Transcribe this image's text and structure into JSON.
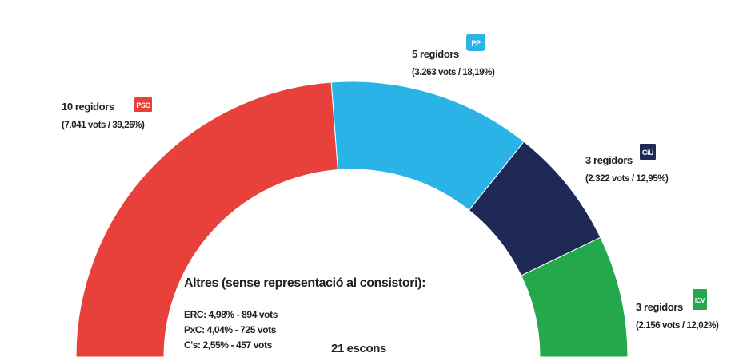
{
  "chart_data": {
    "type": "donut",
    "categories": [
      "PSC",
      "PP",
      "CiU",
      "ICV"
    ],
    "values": [
      10,
      5,
      3,
      3
    ],
    "value_labels": [
      "10 regidors",
      "5 regidors",
      "3 regidors",
      "3 regidors"
    ],
    "vote_labels": [
      "(7.041 vots / 39,26%)",
      "(3.263 vots / 18,19%)",
      "(2.322 vots / 12,95%)",
      "(2.156 vots / 12,02%)"
    ],
    "colors": [
      "#e8403a",
      "#29b3e6",
      "#1e2a55",
      "#23a84c"
    ],
    "center_label": "21 escons",
    "others": {
      "title": "Altres (sense representació al consistori):",
      "items": [
        "ERC: 4,98% - 894 vots",
        "PxC: 4,04% - 725 vots",
        "C's: 2,55% - 457 vots"
      ]
    }
  }
}
